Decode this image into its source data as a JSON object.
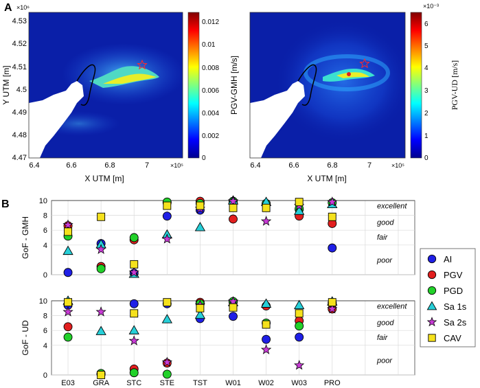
{
  "panel_labels": {
    "a": "A",
    "b": "B"
  },
  "colors": {
    "AI": "#1f1fe6",
    "PGV": "#e21f1f",
    "PGD": "#22d12a",
    "Sa 1s": "#27cfd8",
    "Sa 2s": "#c93ad6",
    "CAV": "#f5e11c",
    "ground_blue": "#0a1fa8",
    "highlight_yellow": "#e8ee2a",
    "epicenter_red": "#ff2a2a"
  },
  "maps": {
    "xlabel": "X UTM [m]",
    "ylabel": "Y UTM [m]",
    "x_ticks": [
      "6.4",
      "6.6",
      "6.8",
      "7"
    ],
    "x_exponent": "×10⁵",
    "y_ticks": [
      "4.53",
      "4.52",
      "4.51",
      "4.5",
      "4.49",
      "4.48",
      "4.47"
    ],
    "y_exponent": "×10⁶",
    "left": {
      "colorbar_label": "PGV-GMH [m/s]",
      "colorbar_ticks": [
        "0.012",
        "0.01",
        "0.008",
        "0.006",
        "0.004",
        "0.002",
        "0"
      ],
      "colorbar_exponent": ""
    },
    "right": {
      "colorbar_label": "PGV-UD [m/s]",
      "colorbar_ticks": [
        "6",
        "5",
        "4",
        "3",
        "2",
        "1",
        "0"
      ],
      "colorbar_exponent": "×10⁻³"
    }
  },
  "chart_data": [
    {
      "type": "scatter",
      "title": "",
      "ylabel": "GoF - GMH",
      "xlabel": "",
      "ylim": [
        0,
        10
      ],
      "yticks": [
        0,
        4,
        6,
        8,
        10
      ],
      "grid": true,
      "categories": [
        "E03",
        "GRA",
        "STC",
        "STE",
        "TST",
        "W01",
        "W02",
        "W03",
        "PRO"
      ],
      "quality_labels": [
        "excellent",
        "good",
        "fair",
        "poor"
      ],
      "series": [
        {
          "name": "AI",
          "marker": "circle",
          "values": [
            0.3,
            4.2,
            0.2,
            7.9,
            8.7,
            9.7,
            9.5,
            8.8,
            3.6
          ]
        },
        {
          "name": "PGV",
          "marker": "circle",
          "values": [
            6.6,
            1.1,
            4.7,
            9.7,
            9.9,
            7.5,
            9.5,
            7.9,
            6.9
          ]
        },
        {
          "name": "PGD",
          "marker": "circle",
          "values": [
            5.2,
            0.8,
            5.0,
            9.8,
            9.6,
            9.9,
            9.6,
            8.9,
            9.7
          ]
        },
        {
          "name": "Sa 1s",
          "marker": "triangle",
          "values": [
            3.2,
            4.1,
            0.1,
            5.4,
            6.4,
            10.0,
            9.8,
            8.6,
            9.5
          ]
        },
        {
          "name": "Sa 2s",
          "marker": "star",
          "values": [
            6.7,
            3.4,
            0.3,
            4.8,
            8.9,
            9.9,
            7.2,
            9.3,
            9.8
          ]
        },
        {
          "name": "CAV",
          "marker": "square",
          "values": [
            5.8,
            7.8,
            1.4,
            9.3,
            9.3,
            9.0,
            9.0,
            9.8,
            7.8
          ]
        }
      ]
    },
    {
      "type": "scatter",
      "title": "",
      "ylabel": "GoF - UD",
      "xlabel": "",
      "ylim": [
        0,
        10
      ],
      "yticks": [
        0,
        4,
        6,
        8,
        10
      ],
      "grid": true,
      "categories": [
        "E03",
        "GRA",
        "STC",
        "STE",
        "TST",
        "W01",
        "W02",
        "W03",
        "PRO"
      ],
      "quality_labels": [
        "excellent",
        "good",
        "fair",
        "poor"
      ],
      "series": [
        {
          "name": "AI",
          "marker": "circle",
          "values": [
            9.4,
            0.1,
            9.6,
            9.6,
            7.6,
            7.9,
            4.8,
            5.1,
            9.7
          ]
        },
        {
          "name": "PGV",
          "marker": "circle",
          "values": [
            6.5,
            0.1,
            0.8,
            1.6,
            9.8,
            9.8,
            9.3,
            7.3,
            8.9
          ]
        },
        {
          "name": "PGD",
          "marker": "circle",
          "values": [
            5.1,
            0.2,
            0.3,
            0.1,
            9.6,
            9.9,
            7.0,
            6.6,
            9.7
          ]
        },
        {
          "name": "Sa 1s",
          "marker": "triangle",
          "values": [
            10.0,
            5.9,
            6.0,
            7.5,
            8.1,
            9.8,
            9.6,
            9.4,
            9.9
          ]
        },
        {
          "name": "Sa 2s",
          "marker": "star",
          "values": [
            8.5,
            8.5,
            4.6,
            1.7,
            9.4,
            9.9,
            3.4,
            1.3,
            8.9
          ]
        },
        {
          "name": "CAV",
          "marker": "square",
          "values": [
            9.8,
            0.0,
            8.3,
            9.8,
            9.0,
            9.1,
            6.8,
            8.3,
            9.8
          ]
        }
      ]
    }
  ],
  "legend": [
    "AI",
    "PGV",
    "PGD",
    "Sa 1s",
    "Sa 2s",
    "CAV"
  ]
}
